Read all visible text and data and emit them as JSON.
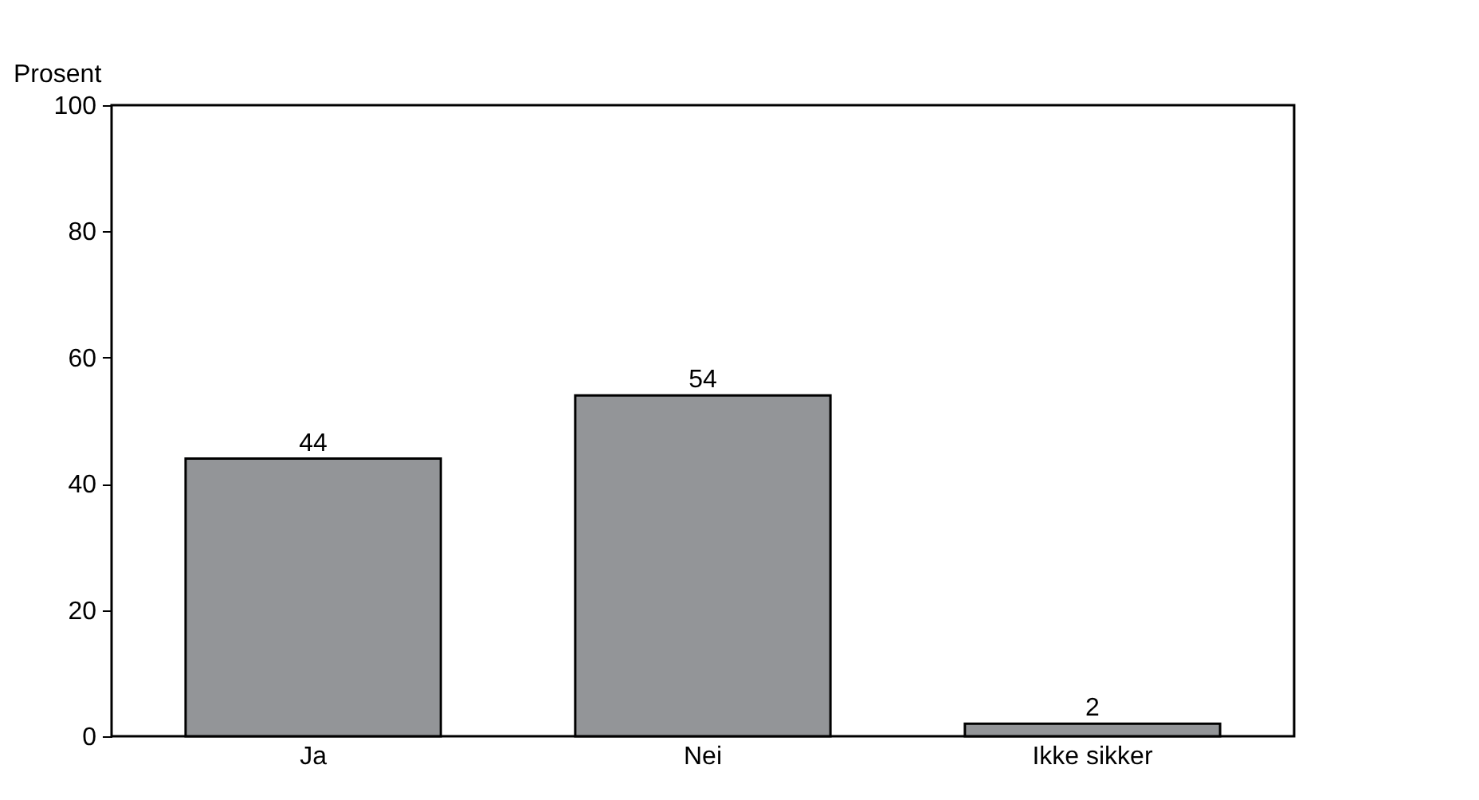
{
  "chart_data": {
    "type": "bar",
    "ylabel": "Prosent",
    "categories": [
      "Ja",
      "Nei",
      "Ikke sikker"
    ],
    "values": [
      44,
      54,
      2
    ],
    "color": "#939598",
    "ylim": [
      0,
      100
    ],
    "yticks": [
      0,
      20,
      40,
      60,
      80,
      100
    ],
    "grid": false,
    "data_labels": true
  }
}
